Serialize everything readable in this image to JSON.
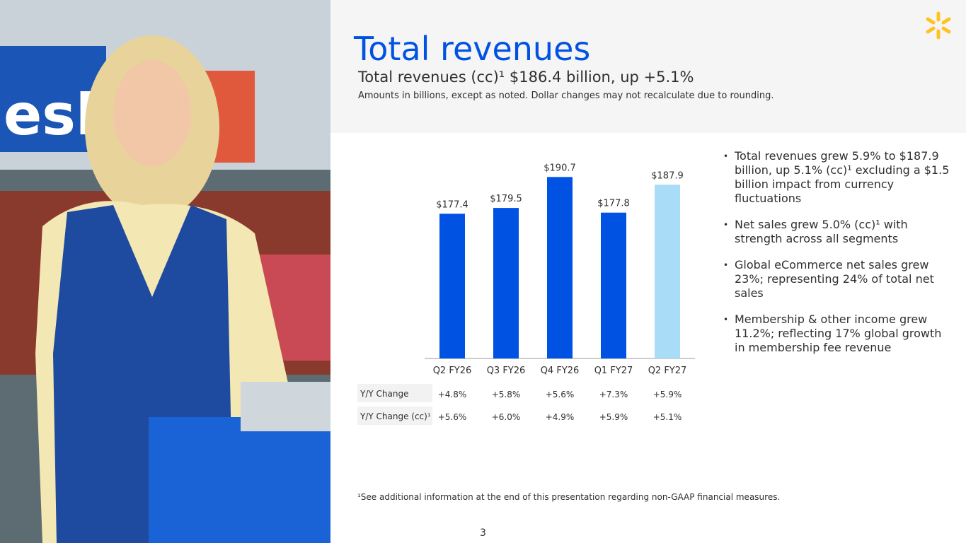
{
  "header": {
    "title": "Total revenues",
    "subtitle": "Total revenues (cc)¹ $186.4 billion, up +5.1%",
    "note": "Amounts in billions, except as noted.  Dollar changes may not recalculate due to rounding."
  },
  "chart_data": {
    "type": "bar",
    "categories": [
      "Q2 FY26",
      "Q3 FY26",
      "Q4 FY26",
      "Q1 FY27",
      "Q2 FY27"
    ],
    "values": [
      177.4,
      179.5,
      190.7,
      177.8,
      187.9
    ],
    "value_labels": [
      "$177.4",
      "$179.5",
      "$190.7",
      "$177.8",
      "$187.9"
    ],
    "colors": [
      "#0053e2",
      "#0053e2",
      "#0053e2",
      "#0053e2",
      "#a9ddf7"
    ],
    "ylim": [
      125,
      200
    ]
  },
  "table": {
    "rows": [
      [
        "Y/Y Change",
        "+4.8%",
        "+5.8%",
        "+5.6%",
        "+7.3%",
        "+5.9%"
      ],
      [
        "Y/Y Change (cc)¹",
        "+5.6%",
        "+6.0%",
        "+4.9%",
        "+5.9%",
        "+5.1%"
      ]
    ]
  },
  "bullets": [
    "Total revenues grew 5.9% to $187.9 billion, up 5.1% (cc)¹ excluding a $1.5 billion impact from currency fluctuations",
    "Net sales grew 5.0% (cc)¹ with strength across all segments",
    "Global eCommerce net sales grew 23%; representing 24% of total net sales",
    "Membership & other income grew 11.2%; reflecting 17% global growth in membership fee revenue"
  ],
  "footnote": "¹See additional information at the end of this presentation regarding non-GAAP financial measures.",
  "page_number": "3"
}
